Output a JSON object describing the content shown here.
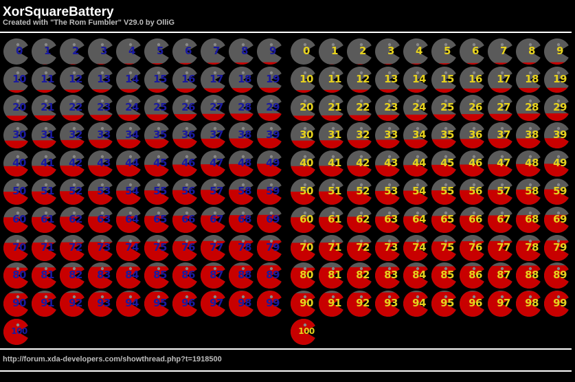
{
  "header": {
    "title": "XorSquareBattery",
    "subtitle": "Created with \"The Rom Fumbler\" V29.0 by OlliG"
  },
  "footer": {
    "url": "http://forum.xda-developers.com/showthread.php?t=1918500"
  },
  "theme": {
    "background": "#000000",
    "gray": "#5a5a5a",
    "red": "#c80000",
    "divider": "#ffffff"
  },
  "sets": [
    {
      "name": "blue-set",
      "label_color": "#1a1aa0"
    },
    {
      "name": "yellow-set",
      "label_color": "#e6d21e"
    }
  ],
  "levels": [
    "0",
    "1",
    "2",
    "3",
    "4",
    "5",
    "6",
    "7",
    "8",
    "9",
    "10",
    "11",
    "12",
    "13",
    "14",
    "15",
    "16",
    "17",
    "18",
    "19",
    "20",
    "21",
    "22",
    "23",
    "24",
    "25",
    "26",
    "27",
    "28",
    "29",
    "30",
    "31",
    "32",
    "33",
    "34",
    "35",
    "36",
    "37",
    "38",
    "39",
    "40",
    "41",
    "42",
    "43",
    "44",
    "45",
    "46",
    "47",
    "48",
    "49",
    "50",
    "51",
    "52",
    "53",
    "54",
    "55",
    "56",
    "57",
    "58",
    "59",
    "60",
    "61",
    "62",
    "63",
    "64",
    "65",
    "66",
    "67",
    "68",
    "69",
    "70",
    "71",
    "72",
    "73",
    "74",
    "75",
    "76",
    "77",
    "78",
    "79",
    "80",
    "81",
    "82",
    "83",
    "84",
    "85",
    "86",
    "87",
    "88",
    "89",
    "90",
    "91",
    "92",
    "93",
    "94",
    "95",
    "96",
    "97",
    "98",
    "99",
    "100"
  ]
}
